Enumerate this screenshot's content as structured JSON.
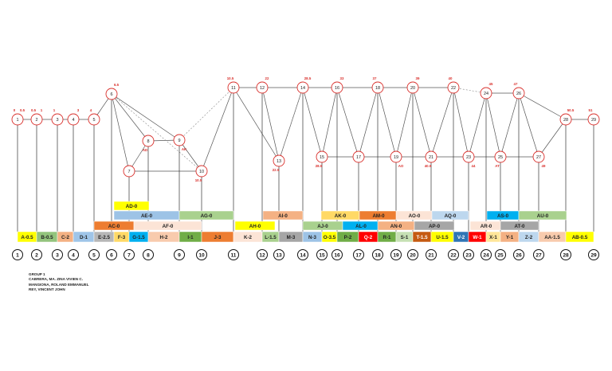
{
  "colors": {
    "node_ring": "#d9302c",
    "label_red": "#d9302c",
    "edge_dark": "#555555",
    "edge_dashed": "#888888"
  },
  "nodes": [
    {
      "id": "1"
    },
    {
      "id": "2"
    },
    {
      "id": "3"
    },
    {
      "id": "4"
    },
    {
      "id": "5"
    },
    {
      "id": "6"
    },
    {
      "id": "7"
    },
    {
      "id": "8"
    },
    {
      "id": "9"
    },
    {
      "id": "10"
    },
    {
      "id": "11"
    },
    {
      "id": "12"
    },
    {
      "id": "13"
    },
    {
      "id": "14"
    },
    {
      "id": "15"
    },
    {
      "id": "16"
    },
    {
      "id": "17"
    },
    {
      "id": "18"
    },
    {
      "id": "19"
    },
    {
      "id": "20"
    },
    {
      "id": "21"
    },
    {
      "id": "22"
    },
    {
      "id": "23"
    },
    {
      "id": "24"
    },
    {
      "id": "25"
    },
    {
      "id": "26"
    },
    {
      "id": "27"
    },
    {
      "id": "28"
    },
    {
      "id": "29"
    }
  ],
  "node_times": [
    {
      "node": "1",
      "text": "0"
    },
    {
      "node": "1",
      "text": "0.5"
    },
    {
      "node": "2",
      "text": "0.5"
    },
    {
      "node": "2",
      "text": "1"
    },
    {
      "node": "3",
      "text": "1"
    },
    {
      "node": "4",
      "text": "3"
    },
    {
      "node": "5",
      "text": "4"
    },
    {
      "node": "6",
      "text": "6.5"
    },
    {
      "node": "8",
      "text": "AD"
    },
    {
      "node": "9",
      "text": "AK"
    },
    {
      "node": "11",
      "text": "10.5"
    },
    {
      "node": "12",
      "text": "22"
    },
    {
      "node": "13",
      "text": "22.5"
    },
    {
      "node": "14",
      "text": "28.5"
    },
    {
      "node": "15",
      "text": "28.5"
    },
    {
      "node": "16",
      "text": "33"
    },
    {
      "node": "18",
      "text": "37"
    },
    {
      "node": "20",
      "text": "39"
    },
    {
      "node": "22",
      "text": "40"
    },
    {
      "node": "24",
      "text": "45"
    },
    {
      "node": "26",
      "text": "47"
    },
    {
      "node": "28",
      "text": "50.5"
    },
    {
      "node": "29",
      "text": "51"
    },
    {
      "node": "27",
      "text": "49"
    },
    {
      "node": "25",
      "text": "AT"
    },
    {
      "node": "23",
      "text": "44"
    },
    {
      "node": "21",
      "text": "40.5"
    },
    {
      "node": "19",
      "text": "AO"
    },
    {
      "node": "10",
      "text": "10.5"
    }
  ],
  "activities": [
    {
      "label": "A-0.5",
      "color": "#ffff00"
    },
    {
      "label": "B-0.5",
      "color": "#93c47d"
    },
    {
      "label": "C-2",
      "color": "#f4b183"
    },
    {
      "label": "D-1",
      "color": "#9fc5e8"
    },
    {
      "label": "E-2.5",
      "color": "#b7b7b7"
    },
    {
      "label": "F-3",
      "color": "#ffd966"
    },
    {
      "label": "G-1.5",
      "color": "#00b0f0"
    },
    {
      "label": "H-2",
      "color": "#f8cbad"
    },
    {
      "label": "I-1",
      "color": "#70ad47"
    },
    {
      "label": "J-3",
      "color": "#ed7d31"
    },
    {
      "label": "K-2",
      "color": "#fce4d6"
    },
    {
      "label": "L-1.5",
      "color": "#a9d18e"
    },
    {
      "label": "M-3",
      "color": "#a6a6a6"
    },
    {
      "label": "N-3",
      "color": "#9dc3e6"
    },
    {
      "label": "O-3.5",
      "color": "#ffff00"
    },
    {
      "label": "P-2",
      "color": "#70ad47"
    },
    {
      "label": "Q-2",
      "color": "#ff0000"
    },
    {
      "label": "R-1",
      "color": "#70ad47"
    },
    {
      "label": "S-1",
      "color": "#c6e0b4"
    },
    {
      "label": "T-1.5",
      "color": "#c55a11"
    },
    {
      "label": "U-1.5",
      "color": "#ffff00"
    },
    {
      "label": "V-2",
      "color": "#2f75b5"
    },
    {
      "label": "W-1",
      "color": "#ff0000"
    },
    {
      "label": "X-1",
      "color": "#ffe699"
    },
    {
      "label": "Y-1",
      "color": "#f4b183"
    },
    {
      "label": "Z-2",
      "color": "#bdd7ee"
    },
    {
      "label": "AA-1.5",
      "color": "#f8cbad"
    },
    {
      "label": "AB-0.5",
      "color": "#ffff00"
    }
  ],
  "dummies": [
    {
      "label": "AD-0",
      "color": "#ffff00"
    },
    {
      "label": "AE-0",
      "color": "#9dc3e6"
    },
    {
      "label": "AG-0",
      "color": "#a9d18e"
    },
    {
      "label": "AC-0",
      "color": "#ed7d31"
    },
    {
      "label": "AF-0",
      "color": "#fce4d6"
    },
    {
      "label": "AH-0",
      "color": "#ffff00"
    },
    {
      "label": "AI-0",
      "color": "#f4b183"
    },
    {
      "label": "AK-0",
      "color": "#ffd966"
    },
    {
      "label": "AM-0",
      "color": "#ed7d31"
    },
    {
      "label": "AO-0",
      "color": "#fce4d6"
    },
    {
      "label": "AQ-0",
      "color": "#bdd7ee"
    },
    {
      "label": "AS-0",
      "color": "#00b0f0"
    },
    {
      "label": "AU-0",
      "color": "#a9d18e"
    },
    {
      "label": "AJ-0",
      "color": "#a9d18e"
    },
    {
      "label": "AL-0",
      "color": "#00b0f0"
    },
    {
      "label": "AN-0",
      "color": "#f4b183"
    },
    {
      "label": "AP-0",
      "color": "#a6a6a6"
    },
    {
      "label": "AR-0",
      "color": "#fce4d6"
    },
    {
      "label": "AT-0",
      "color": "#a6a6a6"
    }
  ],
  "numbers": [
    "1",
    "2",
    "3",
    "4",
    "5",
    "6",
    "7",
    "8",
    "9",
    "10",
    "11",
    "12",
    "13",
    "14",
    "15",
    "16",
    "17",
    "18",
    "19",
    "20",
    "21",
    "22",
    "23",
    "24",
    "25",
    "26",
    "27",
    "28",
    "29"
  ],
  "group": {
    "title": "GROUP 1",
    "members": [
      "CABRERA, MA. ZINA VIVIEN C.",
      "MANGIONA, ROLAND EMMANUEL",
      "REY, VINCENT JOHN"
    ]
  }
}
